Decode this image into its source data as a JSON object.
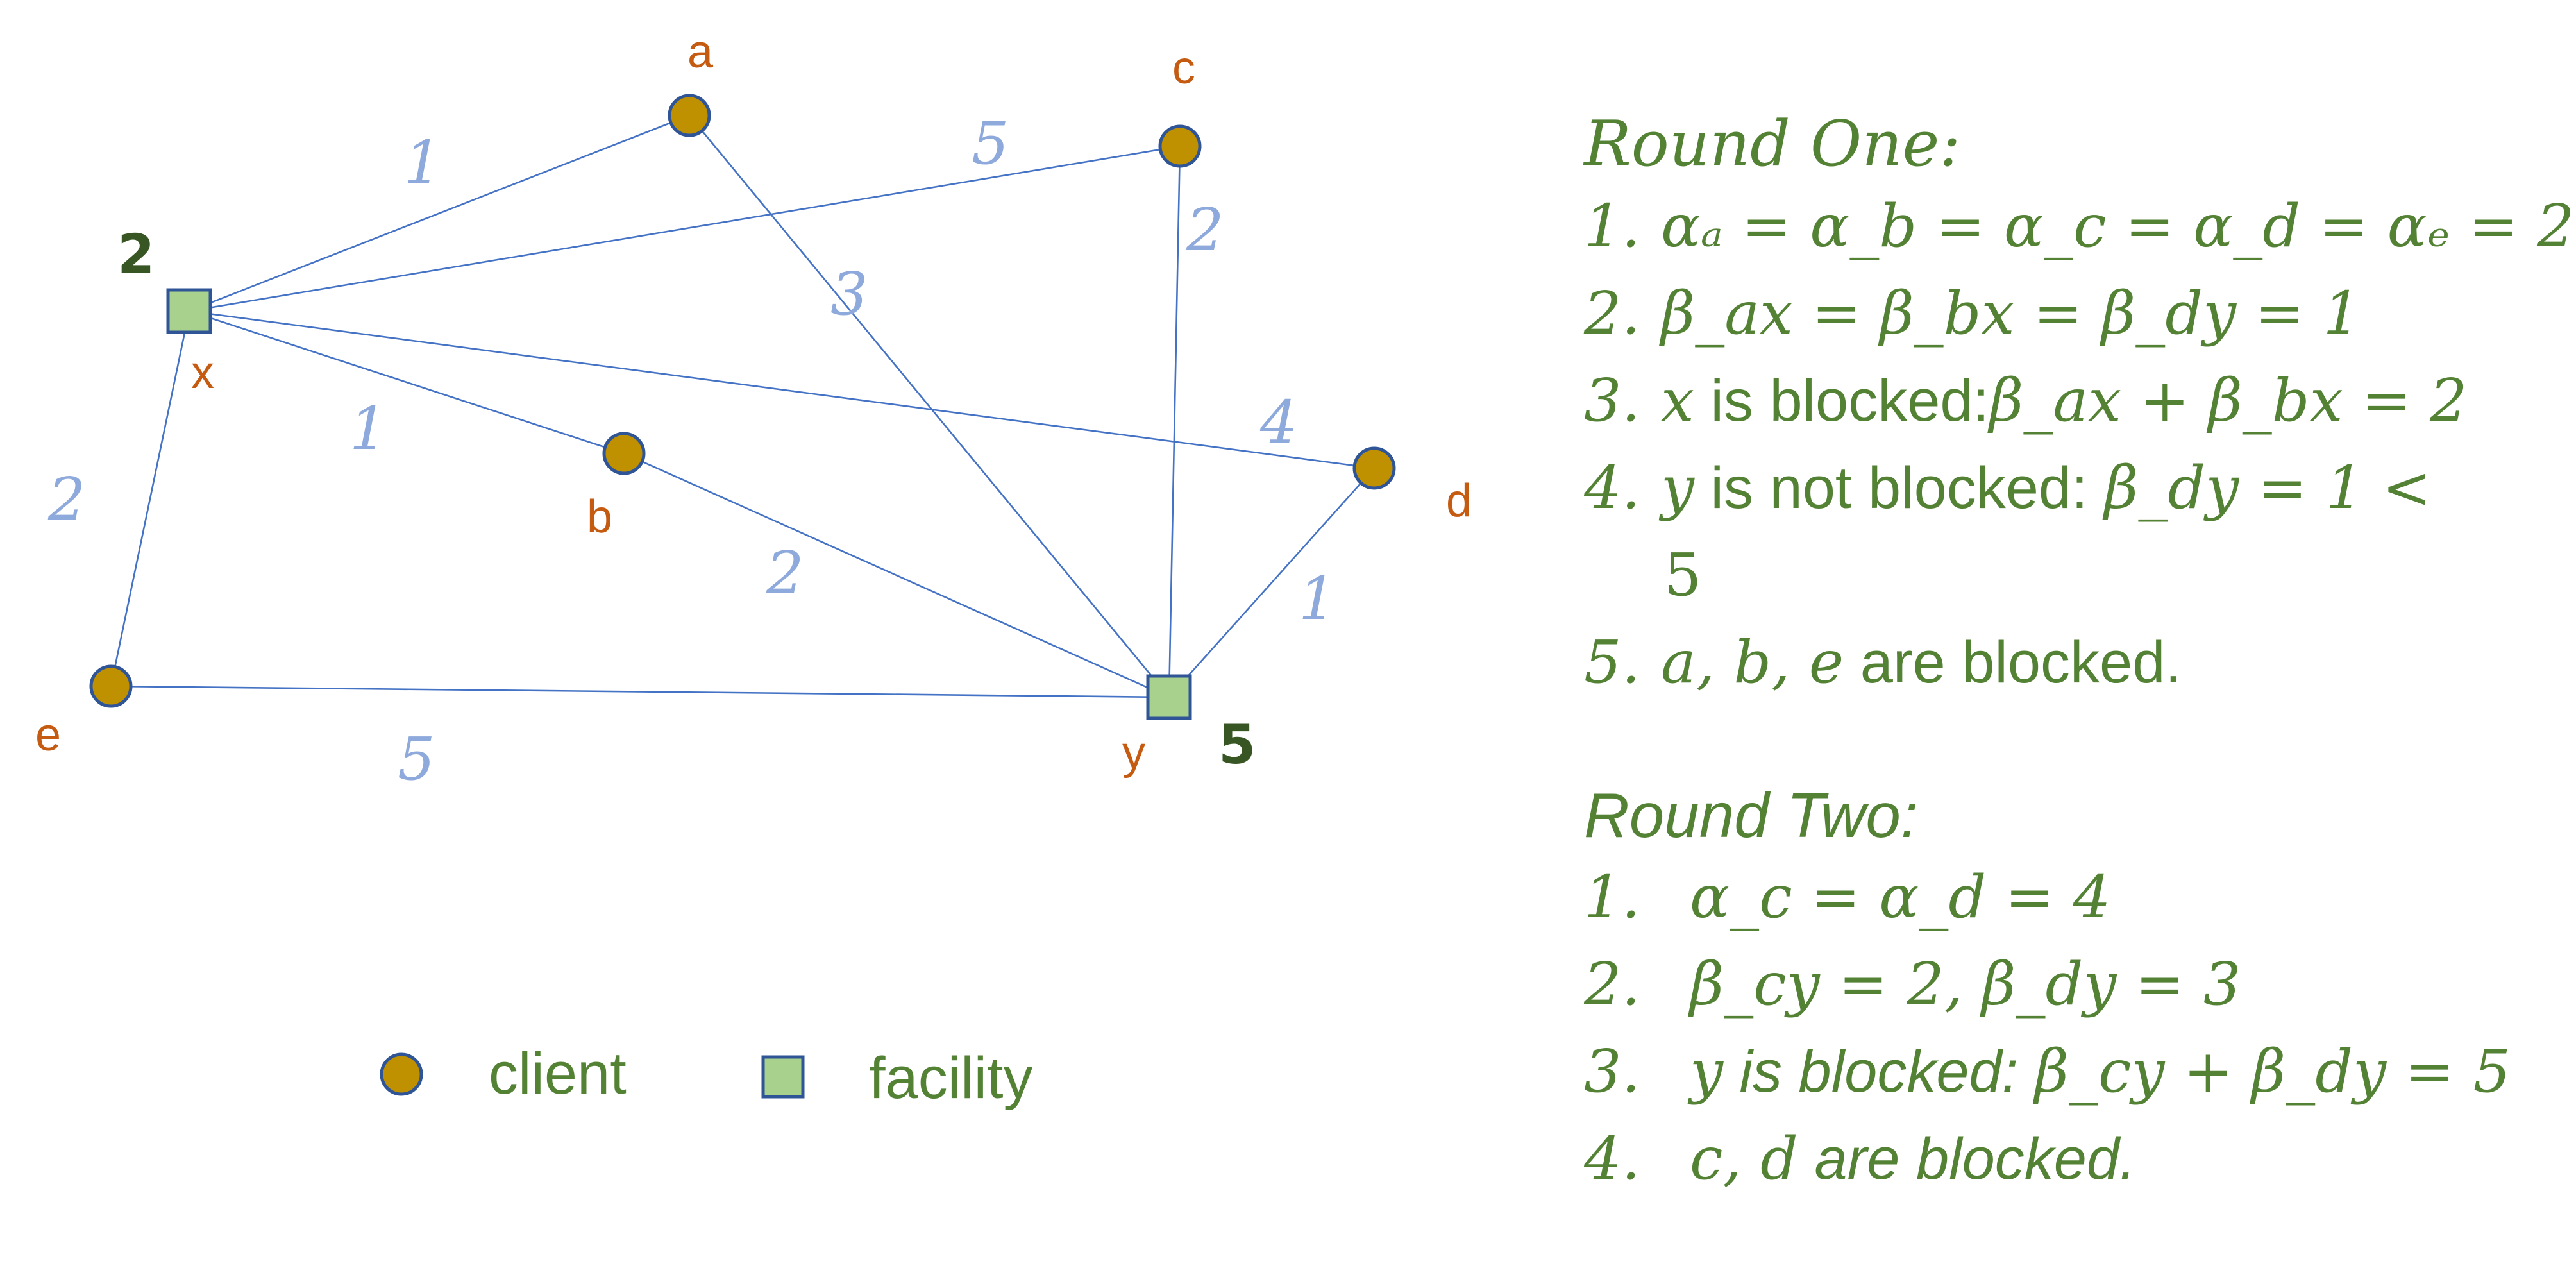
{
  "diagram": {
    "nodes": {
      "a": {
        "label": "a",
        "kind": "client"
      },
      "b": {
        "label": "b",
        "kind": "client"
      },
      "c": {
        "label": "c",
        "kind": "client"
      },
      "d": {
        "label": "d",
        "kind": "client"
      },
      "e": {
        "label": "e",
        "kind": "client"
      },
      "x": {
        "label": "x",
        "kind": "facility",
        "cost": "2"
      },
      "y": {
        "label": "y",
        "kind": "facility",
        "cost": "5"
      }
    },
    "edges": [
      {
        "from": "x",
        "to": "a",
        "weight": "1"
      },
      {
        "from": "x",
        "to": "c",
        "weight": "5"
      },
      {
        "from": "x",
        "to": "b",
        "weight": "1"
      },
      {
        "from": "x",
        "to": "d",
        "weight": "4"
      },
      {
        "from": "x",
        "to": "e",
        "weight": "2"
      },
      {
        "from": "a",
        "to": "y",
        "weight": "3"
      },
      {
        "from": "c",
        "to": "y",
        "weight": "2"
      },
      {
        "from": "b",
        "to": "y",
        "weight": "2"
      },
      {
        "from": "d",
        "to": "y",
        "weight": "1"
      },
      {
        "from": "e",
        "to": "y",
        "weight": "5"
      }
    ]
  },
  "legend": {
    "client": "client",
    "facility": "facility"
  },
  "round_one": {
    "title": "Round One:",
    "steps": [
      {
        "num": "1.",
        "math": "αₐ = α_b = α_c = α_d = αₑ = 2",
        "text": "",
        "math2": ""
      },
      {
        "num": "2.",
        "math": "β_ax = β_bx = β_dy = 1",
        "text": "",
        "math2": ""
      },
      {
        "num": "3.",
        "math": "x",
        "text": " is blocked:",
        "math2": "β_ax + β_bx = 2"
      },
      {
        "num": "4.",
        "math": "y",
        "text": " is not blocked: ",
        "math2": "β_dy = 1 <"
      },
      {
        "num": "",
        "math": "5",
        "text": "",
        "math2": ""
      },
      {
        "num": "5.",
        "math": "a, b, e",
        "text": " are blocked.",
        "math2": ""
      }
    ]
  },
  "round_two": {
    "title": "Round Two:",
    "steps": [
      {
        "num": "1.",
        "math": "α_c = α_d = 4",
        "text": "",
        "math2": ""
      },
      {
        "num": "2.",
        "math": "β_cy = 2, β_dy = 3",
        "text": "",
        "math2": ""
      },
      {
        "num": "3.",
        "math": "y",
        "text": " is blocked: ",
        "math2": "β_cy + β_dy = 5"
      },
      {
        "num": "4.",
        "math": "c, d",
        "text": " are blocked.",
        "math2": ""
      }
    ]
  }
}
